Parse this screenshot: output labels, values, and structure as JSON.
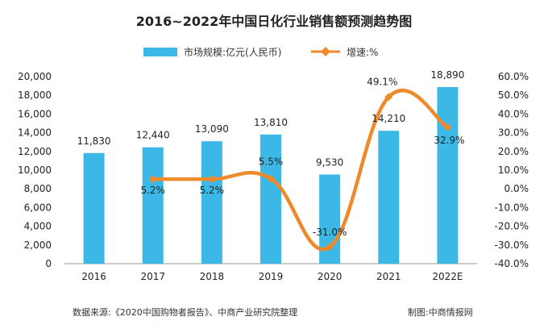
{
  "chart_data": {
    "type": "bar",
    "title": "2016~2022年中国日化行业销售额预测趋势图",
    "categories": [
      "2016",
      "2017",
      "2018",
      "2019",
      "2020",
      "2021",
      "2022E"
    ],
    "series": [
      {
        "name": "市场规模:亿元(人民币)",
        "type": "bar",
        "axis": "left",
        "values": [
          11830,
          12440,
          13090,
          13810,
          9530,
          14210,
          18890
        ],
        "labels": [
          "11,830",
          "12,440",
          "13,090",
          "13,810",
          "9,530",
          "14,210",
          "18,890"
        ],
        "color": "#3bb8e6"
      },
      {
        "name": "增速:%",
        "type": "line",
        "axis": "right",
        "values": [
          null,
          5.2,
          5.2,
          5.5,
          -31.0,
          49.1,
          32.9
        ],
        "labels": [
          "",
          "5.2%",
          "5.2%",
          "5.5%",
          "-31.0%",
          "49.1%",
          "32.9%"
        ],
        "color": "#ee8a2e"
      }
    ],
    "y_left": {
      "lim": [
        0,
        20000
      ],
      "ticks": [
        "0",
        "2,000",
        "4,000",
        "6,000",
        "8,000",
        "10,000",
        "12,000",
        "14,000",
        "16,000",
        "18,000",
        "20,000"
      ]
    },
    "y_right": {
      "lim": [
        -40,
        60
      ],
      "ticks": [
        "-40.0%",
        "-30.0%",
        "-20.0%",
        "-10.0%",
        "0.0%",
        "10.0%",
        "20.0%",
        "30.0%",
        "40.0%",
        "50.0%",
        "60.0%"
      ]
    },
    "grid": false,
    "legend_position": "top-center"
  },
  "footer": {
    "source": "数据来源:《2020中国购物者报告》、中商产业研究院整理",
    "credit": "制图:中商情报网"
  }
}
